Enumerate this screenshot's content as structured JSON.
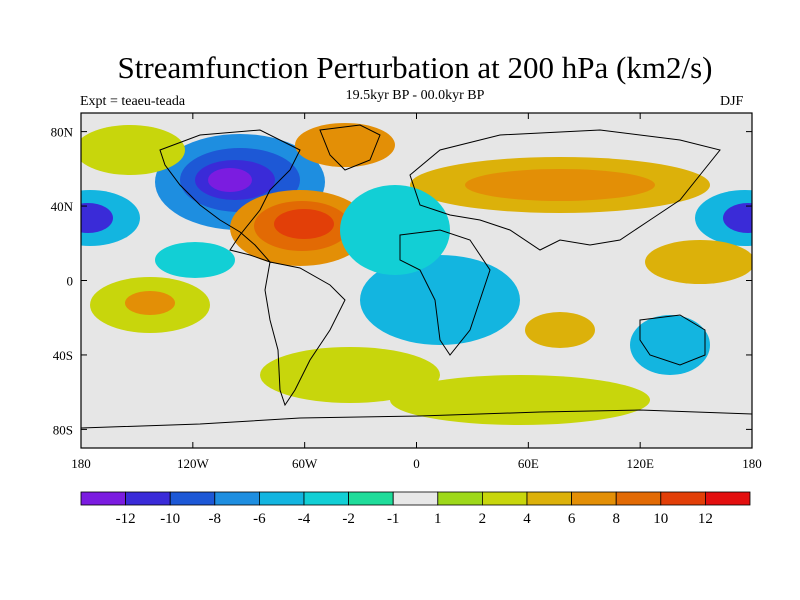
{
  "title": "Streamfunction Perturbation at 200 hPa (km2/s)",
  "subtitle": "19.5kyr BP - 00.0kyr BP",
  "experiment": "Expt = teaeu-teada",
  "season": "DJF",
  "map": {
    "projection": "cylindrical-equidistant",
    "lon_range": [
      -180,
      180
    ],
    "lat_range": [
      -90,
      90
    ],
    "x_ticks": [
      {
        "lon": -180,
        "label": "180"
      },
      {
        "lon": -120,
        "label": "120W"
      },
      {
        "lon": -60,
        "label": "60W"
      },
      {
        "lon": 0,
        "label": "0"
      },
      {
        "lon": 60,
        "label": "60E"
      },
      {
        "lon": 120,
        "label": "120E"
      },
      {
        "lon": 180,
        "label": "180"
      }
    ],
    "y_ticks": [
      {
        "lat": 80,
        "label": "80N"
      },
      {
        "lat": 40,
        "label": "40N"
      },
      {
        "lat": 0,
        "label": "0"
      },
      {
        "lat": -40,
        "label": "40S"
      },
      {
        "lat": -80,
        "label": "80S"
      }
    ],
    "background_color": "#e6e6e6"
  },
  "colorbar": {
    "colors": [
      "#7b1ce0",
      "#3a2bd8",
      "#1d58d6",
      "#1e8ee0",
      "#13b5e0",
      "#12cfd5",
      "#1fdc9a",
      "#e8e8e8",
      "#9ed81a",
      "#c8d60c",
      "#dcb10a",
      "#e38f06",
      "#e26a04",
      "#e23f08",
      "#e30f0f"
    ],
    "labels": [
      "-12",
      "-10",
      "-8",
      "-6",
      "-4",
      "-2",
      "-1",
      "1",
      "2",
      "4",
      "6",
      "8",
      "10",
      "12"
    ]
  },
  "chart_data": {
    "type": "filled-contour-map",
    "variable": "Streamfunction Perturbation at 200 hPa",
    "units": "km2/s",
    "levels": [
      -12,
      -10,
      -8,
      -6,
      -4,
      -2,
      -1,
      1,
      2,
      4,
      6,
      8,
      10,
      12
    ],
    "features": [
      {
        "name": "north-america-low",
        "lon": -95,
        "lat": 50,
        "value": -12
      },
      {
        "name": "gulf-high",
        "lon": -60,
        "lat": 28,
        "value": 12
      },
      {
        "name": "pacific-low-west",
        "lon": -178,
        "lat": 35,
        "value": -8
      },
      {
        "name": "pacific-low-east",
        "lon": 178,
        "lat": 35,
        "value": -8
      },
      {
        "name": "asia-jet-high",
        "lon": 75,
        "lat": 48,
        "value": 8
      },
      {
        "name": "greenland-high",
        "lon": -40,
        "lat": 78,
        "value": 6
      },
      {
        "name": "atlantic-low",
        "lon": -10,
        "lat": 45,
        "value": -4
      },
      {
        "name": "africa-low",
        "lon": 15,
        "lat": -10,
        "value": -4
      },
      {
        "name": "south-atlantic-high",
        "lon": -30,
        "lat": -40,
        "value": 4
      },
      {
        "name": "west-pacific-high",
        "lon": 135,
        "lat": 10,
        "value": 6
      },
      {
        "name": "south-pacific-high",
        "lon": -130,
        "lat": -15,
        "value": 6
      },
      {
        "name": "southern-ocean-high",
        "lon": 50,
        "lat": -55,
        "value": 4
      },
      {
        "name": "indian-ocean-high",
        "lon": 60,
        "lat": -25,
        "value": 6
      },
      {
        "name": "australia-low",
        "lon": 115,
        "lat": -25,
        "value": -4
      }
    ]
  }
}
